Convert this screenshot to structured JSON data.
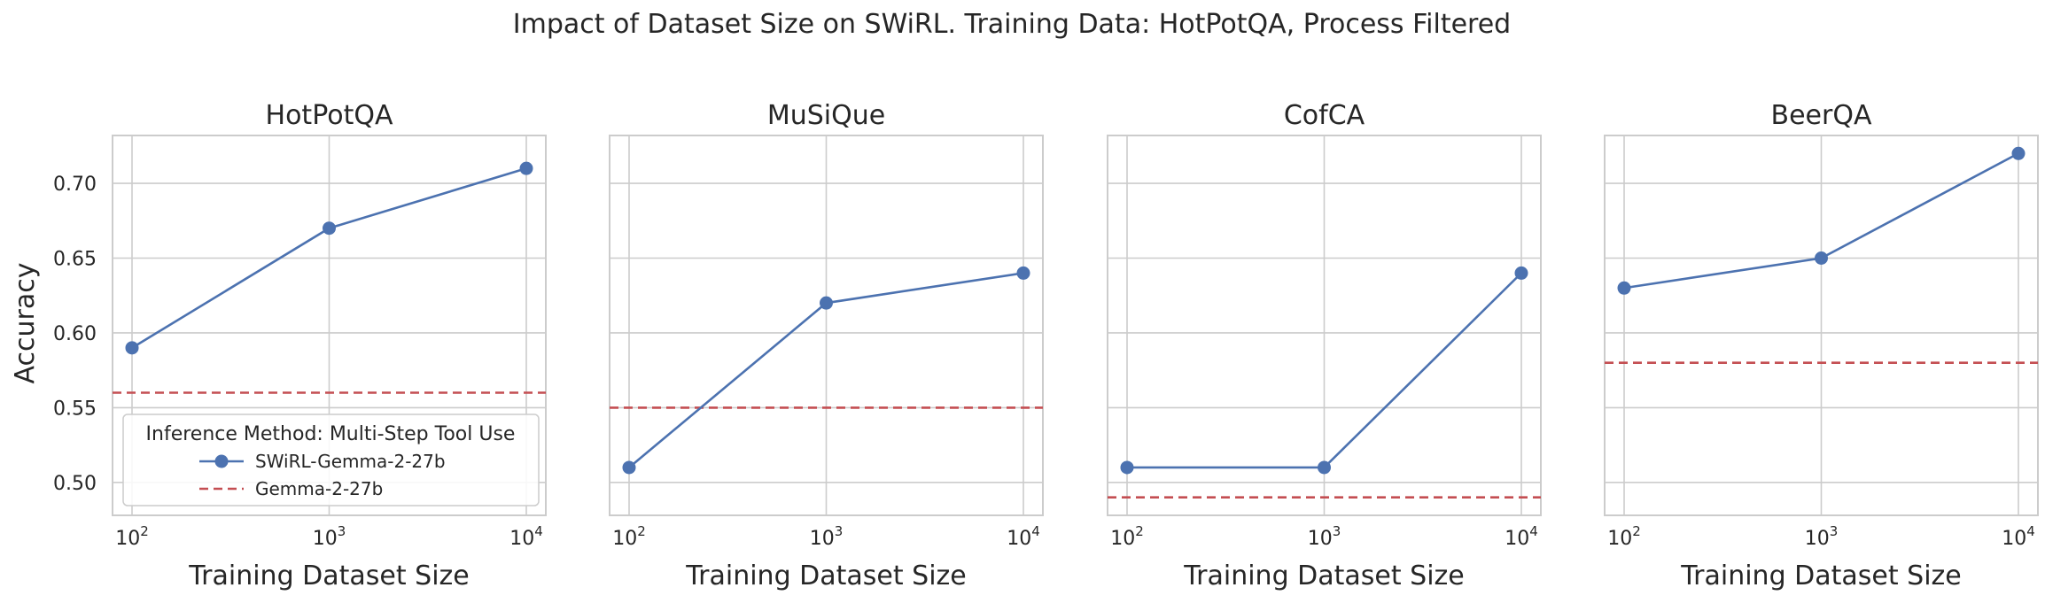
{
  "chart_data": {
    "type": "line",
    "title": "Impact of Dataset Size on SWiRL. Training Data: HotPotQA, Process Filtered",
    "ylabel": "Accuracy",
    "xlabel": "Training Dataset Size",
    "x_scale": "log",
    "x": [
      100,
      1000,
      10000
    ],
    "x_tick_labels": [
      {
        "base": "10",
        "exp": "2"
      },
      {
        "base": "10",
        "exp": "3"
      },
      {
        "base": "10",
        "exp": "4"
      }
    ],
    "ylim": [
      0.478,
      0.732
    ],
    "y_ticks": [
      0.5,
      0.55,
      0.6,
      0.65,
      0.7
    ],
    "y_tick_labels": [
      "0.50",
      "0.55",
      "0.60",
      "0.65",
      "0.70"
    ],
    "grid": true,
    "legend": {
      "title": "Inference Method: Multi-Step Tool Use",
      "placement": "lower-left",
      "entries": [
        {
          "label": "SWiRL-Gemma-2-27b",
          "style": "line-marker",
          "color": "#4c72b0"
        },
        {
          "label": "Gemma-2-27b",
          "style": "dashed",
          "color": "#c44e52"
        }
      ]
    },
    "panels": [
      {
        "title": "HotPotQA",
        "series": [
          {
            "name": "SWiRL-Gemma-2-27b",
            "values": [
              0.59,
              0.67,
              0.71
            ]
          },
          {
            "name": "Gemma-2-27b",
            "constant": 0.56
          }
        ]
      },
      {
        "title": "MuSiQue",
        "series": [
          {
            "name": "SWiRL-Gemma-2-27b",
            "values": [
              0.51,
              0.62,
              0.64
            ]
          },
          {
            "name": "Gemma-2-27b",
            "constant": 0.55
          }
        ]
      },
      {
        "title": "CofCA",
        "series": [
          {
            "name": "SWiRL-Gemma-2-27b",
            "values": [
              0.51,
              0.51,
              0.64
            ]
          },
          {
            "name": "Gemma-2-27b",
            "constant": 0.49
          }
        ]
      },
      {
        "title": "BeerQA",
        "series": [
          {
            "name": "SWiRL-Gemma-2-27b",
            "values": [
              0.63,
              0.65,
              0.72
            ]
          },
          {
            "name": "Gemma-2-27b",
            "constant": 0.58
          }
        ]
      }
    ]
  }
}
